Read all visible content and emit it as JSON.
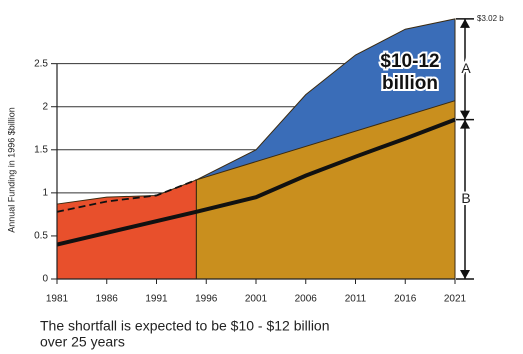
{
  "chart_data": {
    "type": "area",
    "ylabel": "Annual Funding in 1996 $billion",
    "xlim": [
      1981,
      2021
    ],
    "ylim": [
      0,
      3.03
    ],
    "xticks": [
      1981,
      1986,
      1991,
      1996,
      2001,
      2006,
      2011,
      2016,
      2021
    ],
    "yticks": [
      0,
      0.5,
      1,
      1.5,
      2,
      2.5
    ],
    "grid": true,
    "series": [
      {
        "style": "area",
        "color": "#3a6db8",
        "x": [
          1995,
          2001,
          2006,
          2011,
          2016,
          2021
        ],
        "values": [
          1.15,
          1.5,
          2.14,
          2.6,
          2.9,
          3.02
        ]
      },
      {
        "style": "area",
        "color": "#c98f1e",
        "x": [
          1995,
          2021
        ],
        "values": [
          1.15,
          2.07
        ]
      },
      {
        "style": "area",
        "color": "#e8502c",
        "x": [
          1981,
          1986,
          1991,
          1995
        ],
        "values": [
          0.87,
          0.95,
          0.97,
          1.15
        ]
      },
      {
        "style": "dashed",
        "color": "#111111",
        "x": [
          1981,
          1986,
          1991,
          1995
        ],
        "values": [
          0.78,
          0.9,
          0.97,
          1.15
        ]
      },
      {
        "style": "line",
        "color": "#111111",
        "x": [
          1981,
          1995,
          2001,
          2006,
          2011,
          2016,
          2021
        ],
        "values": [
          0.4,
          0.78,
          0.95,
          1.2,
          1.42,
          1.63,
          1.85
        ]
      }
    ],
    "annotation": [
      "$10-12",
      "billion"
    ],
    "top_label": "$3.02 b",
    "bracket_labels": [
      "A",
      "B"
    ],
    "caption": [
      "The shortfall is expected to be $10 - $12 billion",
      "over 25 years"
    ]
  }
}
